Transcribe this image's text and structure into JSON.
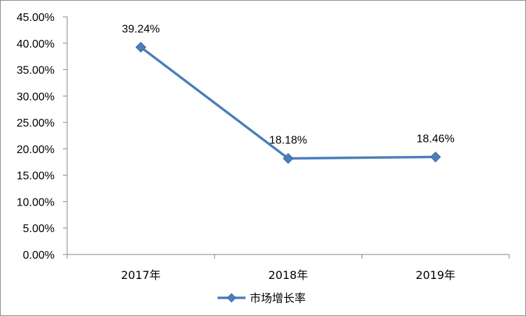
{
  "chart_data": {
    "type": "line",
    "categories": [
      "2017年",
      "2018年",
      "2019年"
    ],
    "series": [
      {
        "name": "市场增长率",
        "values": [
          39.24,
          18.18,
          18.46
        ],
        "data_labels": [
          "39.24%",
          "18.18%",
          "18.46%"
        ],
        "color": "#4a7ebb",
        "marker": "diamond"
      }
    ],
    "y_ticks": [
      "0.00%",
      "5.00%",
      "10.00%",
      "15.00%",
      "20.00%",
      "25.00%",
      "30.00%",
      "35.00%",
      "40.00%",
      "45.00%"
    ],
    "ylim": [
      0,
      45
    ],
    "ytick_step": 5,
    "grid": false,
    "legend": "bottom-center",
    "title": "",
    "xlabel": "",
    "ylabel": ""
  }
}
